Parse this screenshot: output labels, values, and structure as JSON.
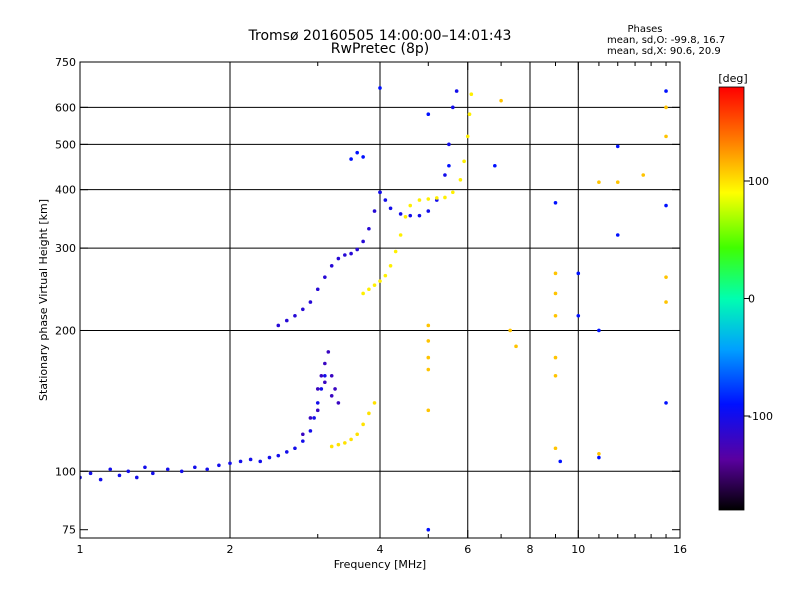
{
  "chart_data": {
    "type": "scatter",
    "title": "Tromsø 20160505 14:00:00–14:01:43",
    "subtitle": "RwPretec (8p)",
    "stats": {
      "heading": "Phases",
      "line_o": "mean, sd,O: -99.8, 16.7",
      "line_x": "mean, sd,X:  90.6, 20.9"
    },
    "xlabel": "Frequency [MHz]",
    "ylabel": "Stationary phase Virtual Height [km]",
    "x_scale": "log",
    "y_scale": "log",
    "xlim": [
      1,
      16
    ],
    "ylim": [
      72,
      750
    ],
    "grid": true,
    "x_ticks": [
      1,
      2,
      4,
      6,
      8,
      10,
      16
    ],
    "x_tick_labels": [
      "1",
      "2",
      "4",
      "6",
      "8",
      "10",
      "16"
    ],
    "y_ticks": [
      75,
      100,
      200,
      300,
      400,
      500,
      600,
      750
    ],
    "y_tick_labels": [
      "75",
      "100",
      "200",
      "300",
      "400",
      "500",
      "600",
      "750"
    ],
    "x_grid": [
      2,
      4,
      6,
      8,
      10
    ],
    "y_grid": [
      100,
      200,
      300,
      400,
      500,
      600
    ],
    "colorbar": {
      "unit": "[deg]",
      "min": -180,
      "max": 180,
      "ticks": [
        100,
        0,
        -100
      ],
      "tick_labels": [
        "100",
        "0",
        "-100"
      ]
    },
    "series": [
      {
        "trace": "E-layer O",
        "phase": -100,
        "points": [
          [
            1.0,
            97
          ],
          [
            1.05,
            99
          ],
          [
            1.1,
            96
          ],
          [
            1.15,
            101
          ],
          [
            1.2,
            98
          ],
          [
            1.25,
            100
          ],
          [
            1.3,
            97
          ],
          [
            1.35,
            102
          ],
          [
            1.4,
            99
          ],
          [
            1.5,
            101
          ],
          [
            1.6,
            100
          ],
          [
            1.7,
            102
          ],
          [
            1.8,
            101
          ],
          [
            1.9,
            103
          ],
          [
            2.0,
            104
          ],
          [
            2.1,
            105
          ],
          [
            2.2,
            106
          ],
          [
            2.3,
            105
          ],
          [
            2.4,
            107
          ],
          [
            2.5,
            108
          ],
          [
            2.6,
            110
          ],
          [
            2.7,
            112
          ],
          [
            2.8,
            116
          ],
          [
            2.9,
            122
          ],
          [
            2.95,
            130
          ],
          [
            3.0,
            140
          ],
          [
            3.05,
            150
          ],
          [
            3.1,
            160
          ]
        ]
      },
      {
        "trace": "Es blob O",
        "phase": -120,
        "points": [
          [
            2.8,
            120
          ],
          [
            2.9,
            130
          ],
          [
            3.0,
            135
          ],
          [
            3.0,
            150
          ],
          [
            3.05,
            160
          ],
          [
            3.1,
            170
          ],
          [
            3.15,
            180
          ],
          [
            3.2,
            160
          ],
          [
            3.25,
            150
          ],
          [
            3.3,
            140
          ],
          [
            3.2,
            145
          ],
          [
            3.1,
            155
          ]
        ]
      },
      {
        "trace": "E-layer X",
        "phase": 100,
        "points": [
          [
            3.2,
            113
          ],
          [
            3.3,
            114
          ],
          [
            3.4,
            115
          ],
          [
            3.5,
            117
          ],
          [
            3.6,
            120
          ],
          [
            3.7,
            126
          ],
          [
            3.8,
            133
          ],
          [
            3.9,
            140
          ]
        ]
      },
      {
        "trace": "F1 O",
        "phase": -110,
        "points": [
          [
            2.5,
            205
          ],
          [
            2.6,
            210
          ],
          [
            2.7,
            215
          ],
          [
            2.8,
            222
          ],
          [
            2.9,
            230
          ],
          [
            3.0,
            245
          ],
          [
            3.1,
            260
          ],
          [
            3.2,
            275
          ],
          [
            3.3,
            285
          ],
          [
            3.4,
            290
          ],
          [
            3.5,
            292
          ],
          [
            3.6,
            298
          ],
          [
            3.7,
            310
          ],
          [
            3.8,
            330
          ],
          [
            3.9,
            360
          ],
          [
            4.0,
            395
          ]
        ]
      },
      {
        "trace": "F2 O",
        "phase": -100,
        "points": [
          [
            4.0,
            395
          ],
          [
            4.1,
            380
          ],
          [
            4.2,
            365
          ],
          [
            4.4,
            355
          ],
          [
            4.6,
            352
          ],
          [
            4.8,
            352
          ],
          [
            5.0,
            360
          ],
          [
            5.2,
            380
          ],
          [
            5.4,
            430
          ],
          [
            5.5,
            500
          ],
          [
            5.6,
            600
          ],
          [
            5.7,
            650
          ]
        ]
      },
      {
        "trace": "F1 X",
        "phase": 95,
        "points": [
          [
            3.7,
            240
          ],
          [
            3.8,
            245
          ],
          [
            3.9,
            250
          ],
          [
            4.0,
            255
          ],
          [
            4.1,
            262
          ],
          [
            4.2,
            275
          ],
          [
            4.3,
            295
          ],
          [
            4.4,
            320
          ],
          [
            4.5,
            350
          ],
          [
            4.6,
            370
          ],
          [
            4.8,
            380
          ],
          [
            5.0,
            382
          ],
          [
            5.2,
            384
          ],
          [
            5.4,
            385
          ],
          [
            5.6,
            395
          ],
          [
            5.8,
            420
          ],
          [
            5.9,
            460
          ],
          [
            6.0,
            520
          ],
          [
            6.05,
            580
          ],
          [
            6.1,
            640
          ]
        ]
      },
      {
        "trace": "scatter",
        "phase": -90,
        "points": [
          [
            3.5,
            465
          ],
          [
            3.6,
            480
          ],
          [
            3.7,
            470
          ],
          [
            4.0,
            660
          ],
          [
            5.0,
            580
          ],
          [
            5.5,
            450
          ],
          [
            6.8,
            450
          ],
          [
            9.0,
            375
          ],
          [
            10.0,
            265
          ],
          [
            12.0,
            495
          ],
          [
            12.0,
            320
          ],
          [
            15.0,
            650
          ],
          [
            15.0,
            370
          ],
          [
            10.0,
            215
          ],
          [
            11.0,
            200
          ],
          [
            5.0,
            75
          ],
          [
            9.2,
            105
          ],
          [
            11.0,
            107
          ],
          [
            15.0,
            140
          ]
        ]
      },
      {
        "trace": "scatter-x",
        "phase": 110,
        "points": [
          [
            7.0,
            620
          ],
          [
            7.3,
            200
          ],
          [
            7.5,
            185
          ],
          [
            9.0,
            265
          ],
          [
            9.0,
            240
          ],
          [
            9.0,
            215
          ],
          [
            9.0,
            175
          ],
          [
            9.0,
            160
          ],
          [
            9.0,
            112
          ],
          [
            11.0,
            415
          ],
          [
            11.0,
            109
          ],
          [
            12.0,
            415
          ],
          [
            13.5,
            430
          ],
          [
            15.0,
            600
          ],
          [
            15.0,
            520
          ],
          [
            15.0,
            260
          ],
          [
            15.0,
            230
          ],
          [
            5.0,
            205
          ],
          [
            5.0,
            190
          ],
          [
            5.0,
            175
          ],
          [
            5.0,
            165
          ],
          [
            5.0,
            135
          ]
        ]
      }
    ]
  }
}
